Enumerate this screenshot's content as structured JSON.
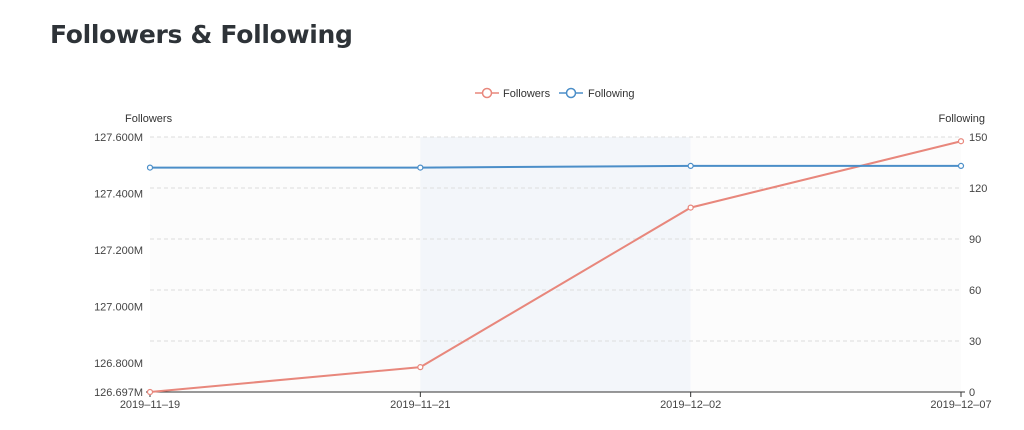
{
  "page": {
    "title": "Followers & Following"
  },
  "colors": {
    "followers": "#e8877c",
    "following": "#4b8ec8",
    "band": "#f3f6fa",
    "band_alt": "#fcfcfc",
    "grid": "#dddddd",
    "axis": "#333333"
  },
  "chart_data": {
    "type": "line",
    "x": [
      "2019-11-19",
      "2019-11-21",
      "2019-12-02",
      "2019-12-07"
    ],
    "x_tick_labels": [
      "2019–11–19",
      "2019–11–21",
      "2019–12–02",
      "2019–12–07"
    ],
    "series": [
      {
        "name": "Followers",
        "axis": "left",
        "values": [
          126.697,
          126.785,
          127.35,
          127.585
        ]
      },
      {
        "name": "Following",
        "axis": "right",
        "values": [
          132,
          132,
          133,
          133
        ]
      }
    ],
    "y_left": {
      "label": "Followers",
      "ylim": [
        126.697,
        127.6
      ],
      "ticks": [
        126.697,
        126.8,
        127.0,
        127.2,
        127.4,
        127.6
      ],
      "tick_labels": [
        "126.697M",
        "126.800M",
        "127.000M",
        "127.200M",
        "127.400M",
        "127.600M"
      ]
    },
    "y_right": {
      "label": "Following",
      "ylim": [
        0,
        150
      ],
      "ticks": [
        0,
        30,
        60,
        90,
        120,
        150
      ],
      "tick_labels": [
        "0",
        "30",
        "60",
        "90",
        "120",
        "150"
      ]
    },
    "legend": {
      "placement": "top-center",
      "entries": [
        "Followers",
        "Following"
      ]
    },
    "grid": true,
    "x_axis": "category"
  }
}
